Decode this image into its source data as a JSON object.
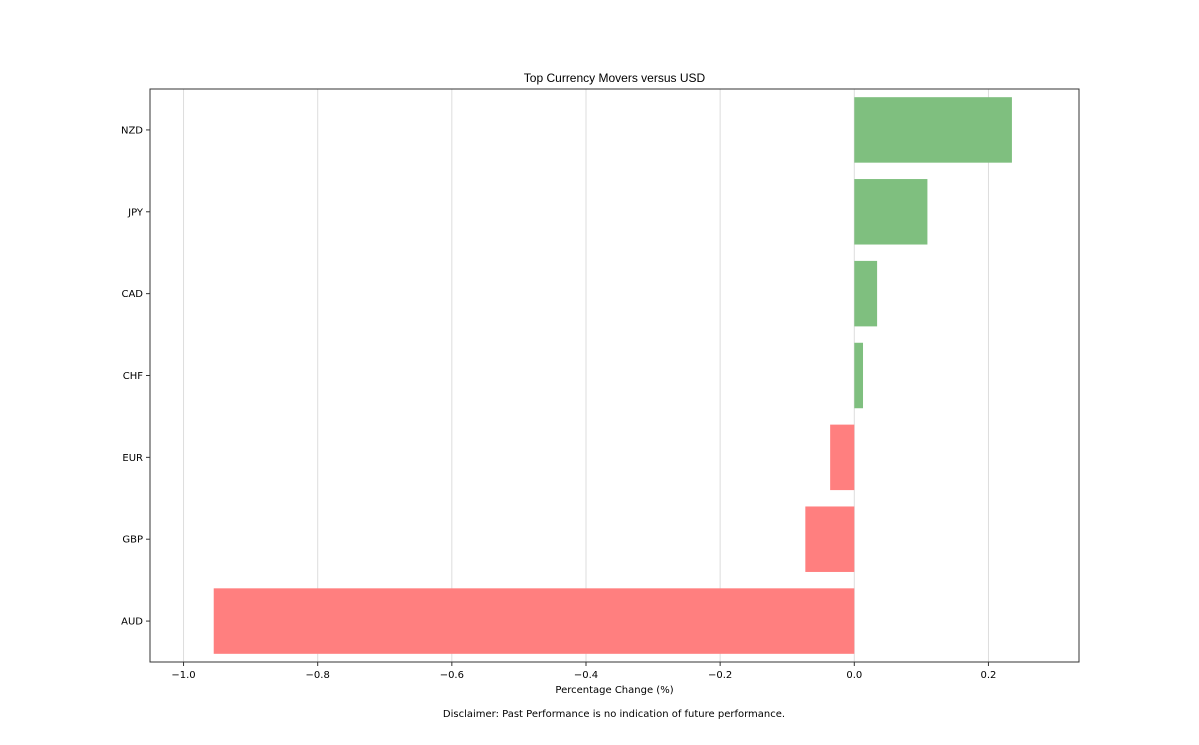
{
  "chart_data": {
    "type": "bar",
    "orientation": "horizontal",
    "title": "Top Currency Movers versus USD",
    "xlabel": "Percentage Change (%)",
    "ylabel": "",
    "categories": [
      "NZD",
      "JPY",
      "CAD",
      "CHF",
      "EUR",
      "GBP",
      "AUD"
    ],
    "values": [
      0.235,
      0.109,
      0.034,
      0.013,
      -0.036,
      -0.073,
      -0.955
    ],
    "xlim": [
      -1.05,
      0.335
    ],
    "xticks": [
      -1.0,
      -0.8,
      -0.6,
      -0.4,
      -0.2,
      0.0,
      0.2
    ],
    "xtick_labels": [
      "−1.0",
      "−0.8",
      "−0.6",
      "−0.4",
      "−0.2",
      "0.0",
      "0.2"
    ],
    "grid": "vertical",
    "positive_color": "#7fbf7f",
    "negative_color": "#ff7f7f",
    "gridline_color": "#dddddd"
  },
  "footer": {
    "disclaimer": "Disclaimer: Past Performance is no indication of future performance."
  }
}
